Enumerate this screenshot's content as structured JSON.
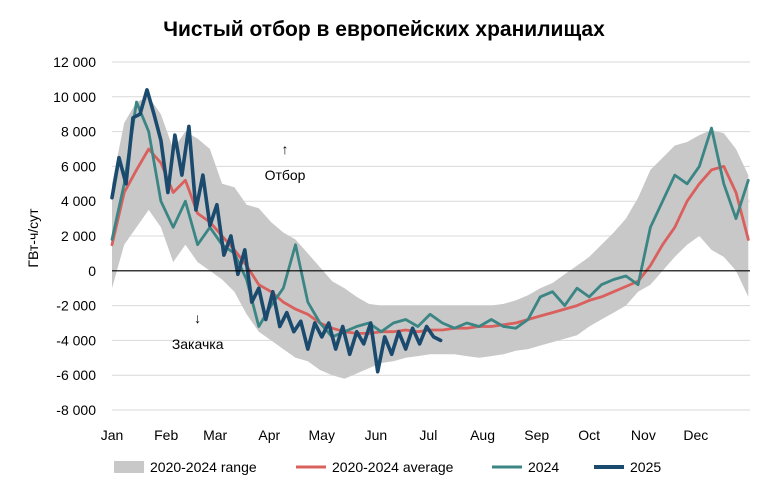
{
  "chart_data": {
    "type": "line",
    "title": "Чистый отбор в европейских хранилищах",
    "ylabel": "ГВт-ч/сут",
    "xlabel": "",
    "ylim": [
      -8000,
      12000
    ],
    "xlim": [
      1,
      366
    ],
    "grid": true,
    "legend_position": "bottom",
    "y_ticks": [
      12000,
      10000,
      8000,
      6000,
      4000,
      2000,
      0,
      -2000,
      -4000,
      -6000,
      -8000
    ],
    "y_tick_labels": [
      "12 000",
      "10 000",
      "8 000",
      "6 000",
      "4 000",
      "2 000",
      "0",
      "-2 000",
      "-4 000",
      "-6 000",
      "-8 000"
    ],
    "x_ticks": [
      1,
      32,
      60,
      91,
      121,
      152,
      182,
      213,
      244,
      274,
      305,
      335
    ],
    "x_tick_labels": [
      "Jan",
      "Feb",
      "Mar",
      "Apr",
      "May",
      "Jun",
      "Jul",
      "Aug",
      "Sep",
      "Oct",
      "Nov",
      "Dec"
    ],
    "annotations": [
      {
        "text": "Отбор",
        "arrow": "↑",
        "x": 100,
        "y": 6700
      },
      {
        "text": "Закачка",
        "arrow": "↓",
        "x": 50,
        "y": -3000
      }
    ],
    "series": [
      {
        "name": "2020-2024 range",
        "kind": "range",
        "color": "#c8c8c8",
        "x": [
          1,
          8,
          15,
          22,
          29,
          36,
          43,
          50,
          57,
          64,
          71,
          78,
          85,
          92,
          99,
          106,
          113,
          120,
          127,
          134,
          141,
          148,
          155,
          162,
          169,
          176,
          183,
          190,
          197,
          204,
          211,
          218,
          225,
          232,
          239,
          246,
          253,
          260,
          267,
          274,
          281,
          288,
          295,
          302,
          309,
          316,
          323,
          330,
          337,
          344,
          351,
          358,
          365
        ],
        "low": [
          -1000,
          1500,
          2500,
          3500,
          2500,
          500,
          1500,
          500,
          0,
          -500,
          -1200,
          -2500,
          -3500,
          -4000,
          -4500,
          -5000,
          -5200,
          -5700,
          -6000,
          -6200,
          -5900,
          -5600,
          -5300,
          -5200,
          -5000,
          -4900,
          -4800,
          -4800,
          -4800,
          -4900,
          -5000,
          -4900,
          -4800,
          -4600,
          -4500,
          -4300,
          -4100,
          -3900,
          -3700,
          -3200,
          -2800,
          -2400,
          -2000,
          -1200,
          -800,
          0,
          800,
          1500,
          2000,
          1200,
          800,
          0,
          -1500
        ],
        "high": [
          5000,
          8500,
          9700,
          10000,
          9000,
          7000,
          8000,
          7600,
          7000,
          5000,
          4800,
          3800,
          3600,
          2800,
          2200,
          1800,
          1000,
          200,
          -600,
          -1000,
          -1500,
          -1900,
          -2000,
          -2000,
          -2000,
          -2000,
          -2000,
          -2000,
          -2000,
          -2000,
          -2000,
          -2000,
          -1900,
          -1700,
          -1400,
          -1000,
          -700,
          -200,
          300,
          800,
          1500,
          2200,
          3000,
          4200,
          5800,
          6500,
          7200,
          7400,
          7800,
          8100,
          7900,
          7000,
          5500
        ]
      },
      {
        "name": "2020-2024 average",
        "kind": "line",
        "color": "#d9605d",
        "x": [
          1,
          8,
          15,
          22,
          29,
          36,
          43,
          50,
          57,
          64,
          71,
          78,
          85,
          92,
          99,
          106,
          113,
          120,
          127,
          134,
          141,
          148,
          155,
          162,
          169,
          176,
          183,
          190,
          197,
          204,
          211,
          218,
          225,
          232,
          239,
          246,
          253,
          260,
          267,
          274,
          281,
          288,
          295,
          302,
          309,
          316,
          323,
          330,
          337,
          344,
          351,
          358,
          365
        ],
        "y": [
          1500,
          4500,
          5800,
          7000,
          6200,
          4500,
          5200,
          3300,
          2800,
          2000,
          1200,
          300,
          -800,
          -1200,
          -1800,
          -2200,
          -2500,
          -3000,
          -3300,
          -3500,
          -3600,
          -3600,
          -3500,
          -3500,
          -3400,
          -3500,
          -3400,
          -3400,
          -3300,
          -3300,
          -3200,
          -3200,
          -3100,
          -3000,
          -2800,
          -2600,
          -2400,
          -2200,
          -2000,
          -1700,
          -1500,
          -1200,
          -900,
          -600,
          300,
          1500,
          2500,
          4000,
          5000,
          5800,
          6000,
          4500,
          1800
        ]
      },
      {
        "name": "2024",
        "kind": "line",
        "color": "#3c8585",
        "x": [
          1,
          8,
          15,
          22,
          29,
          36,
          43,
          50,
          57,
          64,
          71,
          78,
          85,
          92,
          99,
          106,
          113,
          120,
          127,
          134,
          141,
          148,
          155,
          162,
          169,
          176,
          183,
          190,
          197,
          204,
          211,
          218,
          225,
          232,
          239,
          246,
          253,
          260,
          267,
          274,
          281,
          288,
          295,
          302,
          309,
          316,
          323,
          330,
          337,
          344,
          351,
          358,
          365
        ],
        "y": [
          1800,
          5000,
          9700,
          8000,
          4000,
          2500,
          4000,
          1500,
          2500,
          1500,
          1000,
          -500,
          -3200,
          -2000,
          -1000,
          1500,
          -1800,
          -3000,
          -3800,
          -3500,
          -3200,
          -3000,
          -3500,
          -3000,
          -2800,
          -3200,
          -2500,
          -3000,
          -3300,
          -3000,
          -3200,
          -2800,
          -3200,
          -3300,
          -2800,
          -1500,
          -1200,
          -2000,
          -1000,
          -1500,
          -800,
          -500,
          -300,
          -800,
          2500,
          4000,
          5500,
          5000,
          6000,
          8200,
          5000,
          3000,
          5200
        ]
      },
      {
        "name": "2025",
        "kind": "line",
        "color": "#1a4a6e",
        "x": [
          1,
          5,
          9,
          13,
          17,
          21,
          25,
          29,
          33,
          37,
          41,
          45,
          49,
          53,
          57,
          61,
          65,
          69,
          73,
          77,
          81,
          85,
          89,
          93,
          97,
          101,
          105,
          109,
          113,
          117,
          121,
          125,
          129,
          133,
          137,
          141,
          145,
          149,
          153,
          157,
          161,
          165,
          169,
          173,
          177,
          181,
          185,
          189
        ],
        "y": [
          4200,
          6500,
          5000,
          8800,
          9000,
          10400,
          9000,
          7500,
          4500,
          7800,
          5500,
          8300,
          3500,
          5500,
          2600,
          3800,
          900,
          2000,
          -200,
          1200,
          -1800,
          -1000,
          -2800,
          -1200,
          -3200,
          -2400,
          -3500,
          -2900,
          -4500,
          -3000,
          -3800,
          -3000,
          -4500,
          -3200,
          -4800,
          -3500,
          -4200,
          -3000,
          -5800,
          -3800,
          -4800,
          -3500,
          -4500,
          -3300,
          -4200,
          -3200,
          -3800,
          -4000
        ]
      }
    ]
  }
}
